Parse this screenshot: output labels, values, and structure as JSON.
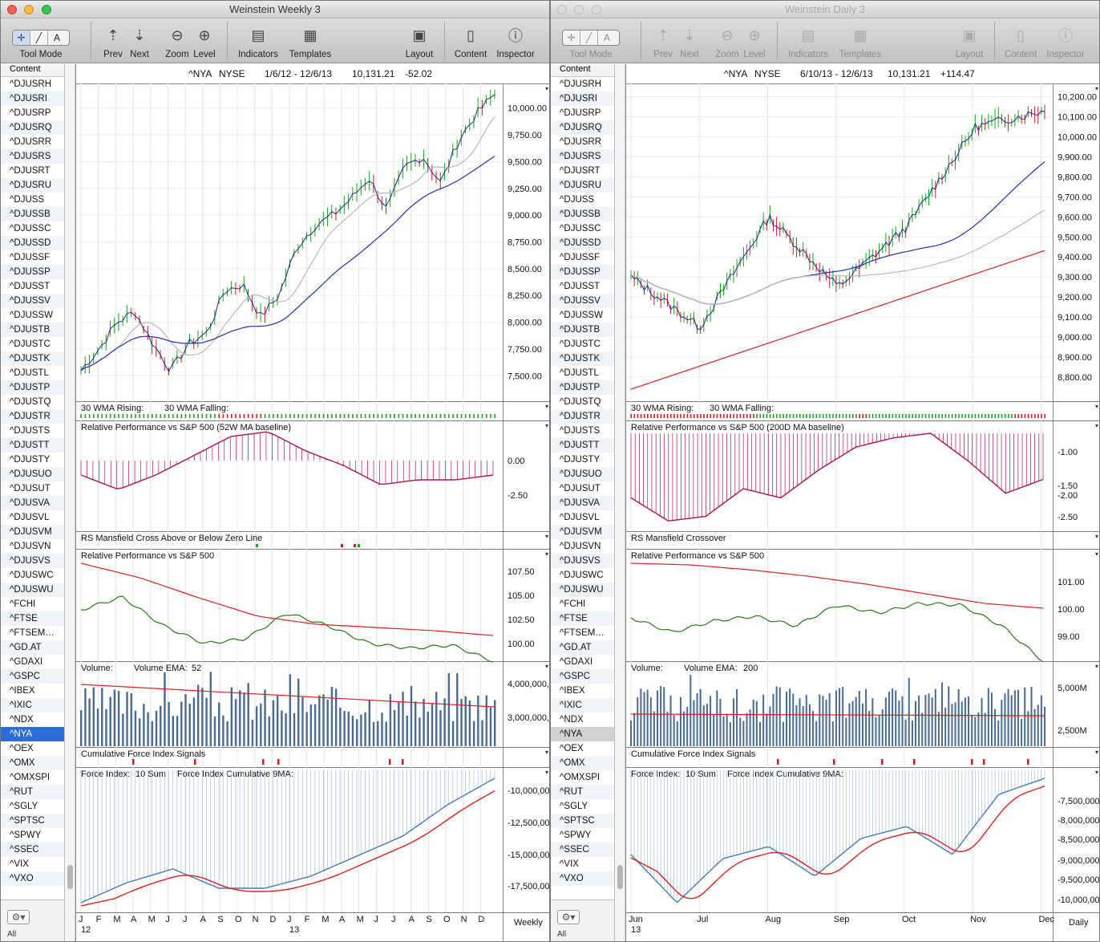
{
  "windows": [
    {
      "id": "L",
      "title": "Weinstein Weekly 3",
      "active": true,
      "header": {
        "symbol": "^NYA",
        "exchange": "NYSE",
        "range": "1/6/12 - 12/6/13",
        "last": "10,131.21",
        "change": "-52.02"
      },
      "price_axis": [
        "10,000.00",
        "9,750.00",
        "9,500.00",
        "9,250.00",
        "9,000.00",
        "8,750.00",
        "8,500.00",
        "8,250.00",
        "8,000.00",
        "7,750.00",
        "7,500.00"
      ],
      "wma_panel": {
        "rising": "30 WMA Rising:",
        "falling": "30 WMA Falling:"
      },
      "relperf_panel": {
        "title": "Relative Performance vs S&P 500 (52W MA baseline)",
        "axis": [
          "0.00",
          "-2.50"
        ]
      },
      "mansfield_panel": {
        "title": "RS Mansfield Cross Above or Below Zero Line"
      },
      "relperf2_panel": {
        "title": "Relative Performance vs S&P 500",
        "axis": [
          "107.50",
          "105.00",
          "102.50",
          "100.00"
        ]
      },
      "volume_panel": {
        "label": "Volume:",
        "ema_label": "Volume EMA:",
        "ema_value": "52",
        "axis": [
          "4,000,000,0",
          "3,000,000,0"
        ]
      },
      "cfi_panel": {
        "title": "Cumulative Force Index Signals"
      },
      "force_panel": {
        "label": "Force Index:",
        "sum": "10 Sum",
        "cum_label": "Force Index Cumulative 9MA:",
        "axis": [
          "-10,000,00",
          "-12,500,00",
          "-15,000,00",
          "-17,500,00"
        ]
      },
      "time_axis": {
        "months": [
          "J",
          "F",
          "M",
          "A",
          "M",
          "J",
          "J",
          "A",
          "S",
          "O",
          "N",
          "D",
          "J",
          "F",
          "M",
          "A",
          "M",
          "J",
          "J",
          "A",
          "S",
          "O",
          "N",
          "D"
        ],
        "years": [
          "12",
          "13"
        ],
        "period": "Weekly"
      },
      "sidebar": [
        "^DJUSRH",
        "^DJUSRI",
        "^DJUSRP",
        "^DJUSRQ",
        "^DJUSRR",
        "^DJUSRS",
        "^DJUSRT",
        "^DJUSRU",
        "^DJUSS",
        "^DJUSSB",
        "^DJUSSC",
        "^DJUSSD",
        "^DJUSSF",
        "^DJUSSP",
        "^DJUSST",
        "^DJUSSV",
        "^DJUSSW",
        "^DJUSTB",
        "^DJUSTC",
        "^DJUSTK",
        "^DJUSTL",
        "^DJUSTP",
        "^DJUSTQ",
        "^DJUSTR",
        "^DJUSTS",
        "^DJUSTT",
        "^DJUSTY",
        "^DJUSUO",
        "^DJUSUT",
        "^DJUSVA",
        "^DJUSVL",
        "^DJUSVM",
        "^DJUSVN",
        "^DJUSVS",
        "^DJUSWC",
        "^DJUSWU",
        "^FCHI",
        "^FTSE",
        "^FTSEM…",
        "^GD.AT",
        "^GDAXI",
        "^GSPC",
        "^IBEX",
        "^IXIC",
        "^NDX",
        "^NYA",
        "^OEX",
        "^OMX",
        "^OMXSPI",
        "^RUT",
        "^SGLY",
        "^SPTSC",
        "^SPWY",
        "^SSEC",
        "^VIX",
        "^VXO"
      ]
    },
    {
      "id": "R",
      "title": "Weinstein Daily 3",
      "active": false,
      "header": {
        "symbol": "^NYA",
        "exchange": "NYSE",
        "range": "6/10/13 - 12/6/13",
        "last": "10,131.21",
        "change": "+114.47"
      },
      "price_axis": [
        "10,200.00",
        "10,100.00",
        "10,000.00",
        "9,900.00",
        "9,800.00",
        "9,700.00",
        "9,600.00",
        "9,500.00",
        "9,400.00",
        "9,300.00",
        "9,200.00",
        "9,100.00",
        "9,000.00",
        "8,900.00",
        "8,800.00"
      ],
      "wma_panel": {
        "rising": "30 WMA Rising:",
        "falling": "30 WMA Falling:"
      },
      "relperf_panel": {
        "title": "Relative Performance vs S&P 500 (200D MA baseline)",
        "axis": [
          "-1.00",
          "-1.50",
          "-2.00",
          "-2.50"
        ]
      },
      "mansfield_panel": {
        "title": "RS Mansfield Crossover"
      },
      "relperf2_panel": {
        "title": "Relative Performance vs S&P 500",
        "axis": [
          "101.00",
          "100.00",
          "99.00"
        ]
      },
      "volume_panel": {
        "label": "Volume:",
        "ema_label": "Volume EMA:",
        "ema_value": "200",
        "axis": [
          "5,000M",
          "2,500M"
        ]
      },
      "cfi_panel": {
        "title": "Cumulative Force Index Signals"
      },
      "force_panel": {
        "label": "Force Index:",
        "sum": "10 Sum",
        "cum_label": "Force Index Cumulative 9MA:",
        "axis": [
          "-7,500,000",
          "-8,000,000",
          "-8,500,000",
          "-9,000,000",
          "-9,500,000",
          "-10,000,000"
        ]
      },
      "time_axis": {
        "months": [
          "Jun",
          "Jul",
          "Aug",
          "Sep",
          "Oct",
          "Nov",
          "Dec"
        ],
        "years": [
          "13"
        ],
        "period": "Daily"
      },
      "sidebar": [
        "^DJUSRH",
        "^DJUSRI",
        "^DJUSRP",
        "^DJUSRQ",
        "^DJUSRR",
        "^DJUSRS",
        "^DJUSRT",
        "^DJUSRU",
        "^DJUSS",
        "^DJUSSB",
        "^DJUSSC",
        "^DJUSSD",
        "^DJUSSF",
        "^DJUSSP",
        "^DJUSST",
        "^DJUSSV",
        "^DJUSSW",
        "^DJUSTB",
        "^DJUSTC",
        "^DJUSTK",
        "^DJUSTL",
        "^DJUSTP",
        "^DJUSTQ",
        "^DJUSTR",
        "^DJUSTS",
        "^DJUSTT",
        "^DJUSTY",
        "^DJUSUO",
        "^DJUSUT",
        "^DJUSVA",
        "^DJUSVL",
        "^DJUSVM",
        "^DJUSVN",
        "^DJUSVS",
        "^DJUSWC",
        "^DJUSWU",
        "^FCHI",
        "^FTSE",
        "^FTSEM…",
        "^GD.AT",
        "^GDAXI",
        "^GSPC",
        "^IBEX",
        "^IXIC",
        "^NDX",
        "^NYA",
        "^OEX",
        "^OMX",
        "^OMXSPI",
        "^RUT",
        "^SGLY",
        "^SPTSC",
        "^SPWY",
        "^SSEC",
        "^VIX",
        "^VXO"
      ]
    }
  ],
  "selected_symbol": "^NYA",
  "toolbar": {
    "tool_mode": "Tool Mode",
    "prev": "Prev",
    "next": "Next",
    "zoom": "Zoom",
    "level": "Level",
    "indicators": "Indicators",
    "templates": "Templates",
    "layout": "Layout",
    "content": "Content",
    "inspector": "Inspector"
  },
  "sidebar_header": "Content",
  "sidebar_footer": "All",
  "colors": {
    "up_bar": "#1aa31a",
    "down_bar": "#d01c1c",
    "price_bar": "#1c2a8a",
    "ma_blue": "#2233aa",
    "ma_grey": "#b8b8b8",
    "ma_red": "#e02020",
    "relperf": "#b0144a",
    "relperf_line": "#2a7a1a",
    "volume": "#4a6a92",
    "force": "#4a7ab8"
  },
  "chart_data": [
    {
      "type": "line",
      "title": "^NYA NYSE 1/6/12 - 12/6/13",
      "period": "Weekly",
      "x": [
        "J",
        "F",
        "M",
        "A",
        "M",
        "J",
        "J",
        "A",
        "S",
        "O",
        "N",
        "D",
        "J",
        "F",
        "M",
        "A",
        "M",
        "J",
        "J",
        "A",
        "S",
        "O",
        "N",
        "D"
      ],
      "series": [
        {
          "name": "^NYA",
          "values": [
            7550,
            7750,
            8000,
            8100,
            7800,
            7550,
            7800,
            7900,
            8300,
            8350,
            8050,
            8250,
            8700,
            8900,
            9000,
            9150,
            9350,
            9050,
            9450,
            9550,
            9300,
            9700,
            9950,
            10131
          ]
        }
      ],
      "ylim": [
        7300,
        10200
      ]
    },
    {
      "type": "line",
      "title": "^NYA NYSE 6/10/13 - 12/6/13",
      "period": "Daily",
      "x": [
        "Jun",
        "Jul",
        "Aug",
        "Sep",
        "Oct",
        "Nov",
        "Dec"
      ],
      "series": [
        {
          "name": "^NYA",
          "values": [
            9300,
            9050,
            9600,
            9250,
            9550,
            10050,
            10131
          ]
        }
      ],
      "ylim": [
        8700,
        10250
      ]
    }
  ]
}
